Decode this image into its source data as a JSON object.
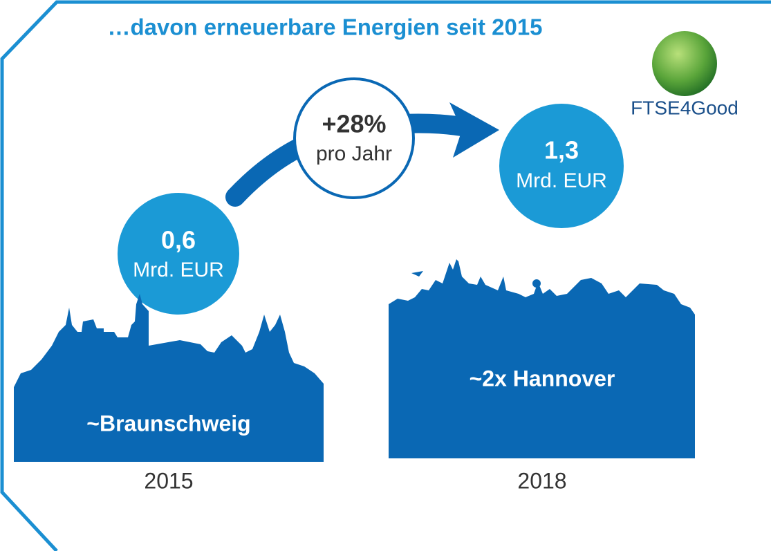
{
  "header": {
    "title": "…davon erneuerbare Energien seit 2015"
  },
  "growth": {
    "rate": "+28%",
    "unit": "pro Jahr"
  },
  "left": {
    "amount": "0,6",
    "unit": "Mrd. EUR",
    "city": "~Braunschweig",
    "year": "2015"
  },
  "right": {
    "amount": "1,3",
    "unit": "Mrd. EUR",
    "city": "~2x Hannover",
    "year": "2018"
  },
  "logo": {
    "label": "FTSE4Good"
  }
}
